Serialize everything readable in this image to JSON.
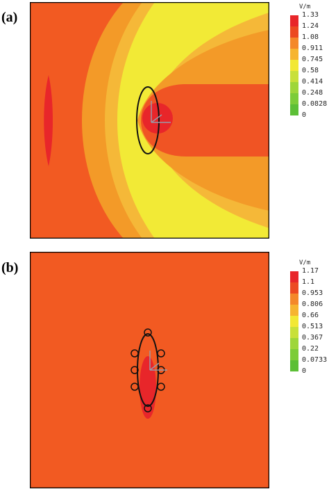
{
  "panels": [
    {
      "label": "(a)",
      "unit": "V/m",
      "ticks": [
        "1.33",
        "1.24",
        "1.08",
        "0.911",
        "0.745",
        "0.58",
        "0.414",
        "0.248",
        "0.0828",
        "0"
      ],
      "colors": [
        "#e8262a",
        "#ec4a22",
        "#f4882a",
        "#f6b430",
        "#f2e834",
        "#c8e03a",
        "#9ed63a",
        "#7ccc38",
        "#5cbf36"
      ]
    },
    {
      "label": "(b)",
      "unit": "V/m",
      "ticks": [
        "1.17",
        "1.1",
        "0.953",
        "0.806",
        "0.66",
        "0.513",
        "0.367",
        "0.22",
        "0.0733",
        "0"
      ],
      "colors": [
        "#e8262a",
        "#ec4a22",
        "#f4882a",
        "#f6b430",
        "#f2e834",
        "#c8e03a",
        "#9ed63a",
        "#7ccc38",
        "#5cbf36"
      ]
    }
  ]
}
